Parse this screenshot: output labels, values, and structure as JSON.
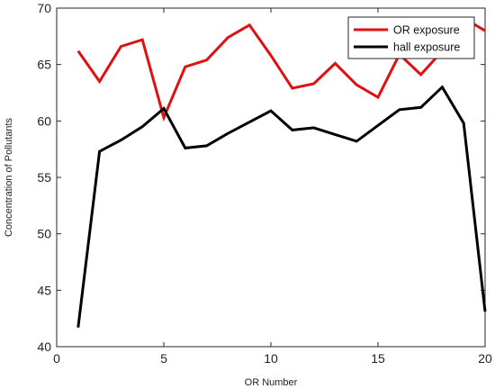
{
  "chart_data": {
    "type": "line",
    "xlabel": "OR Number",
    "ylabel": "Concentration of Pollutants",
    "xlim": [
      0,
      20
    ],
    "ylim": [
      40,
      70
    ],
    "xticks": [
      0,
      5,
      10,
      15,
      20
    ],
    "yticks": [
      40,
      45,
      50,
      55,
      60,
      65,
      70
    ],
    "grid": false,
    "legend_position": "top-right",
    "x": [
      1,
      2,
      3,
      4,
      5,
      6,
      7,
      8,
      9,
      10,
      11,
      12,
      13,
      14,
      15,
      16,
      17,
      18,
      19,
      20
    ],
    "series": [
      {
        "name": "OR exposure",
        "color": "#e01010",
        "values": [
          66.2,
          63.5,
          66.6,
          67.2,
          60.3,
          64.8,
          65.4,
          67.4,
          68.5,
          65.8,
          62.9,
          63.3,
          65.1,
          63.2,
          62.1,
          65.9,
          64.1,
          66.2,
          69.1,
          68.0
        ]
      },
      {
        "name": "hall exposure",
        "color": "#000000",
        "values": [
          41.7,
          57.3,
          58.3,
          59.5,
          61.1,
          57.6,
          57.8,
          58.9,
          59.9,
          60.9,
          59.2,
          59.4,
          58.8,
          58.2,
          59.6,
          61.0,
          61.2,
          63.0,
          59.8,
          43.1
        ]
      }
    ]
  }
}
